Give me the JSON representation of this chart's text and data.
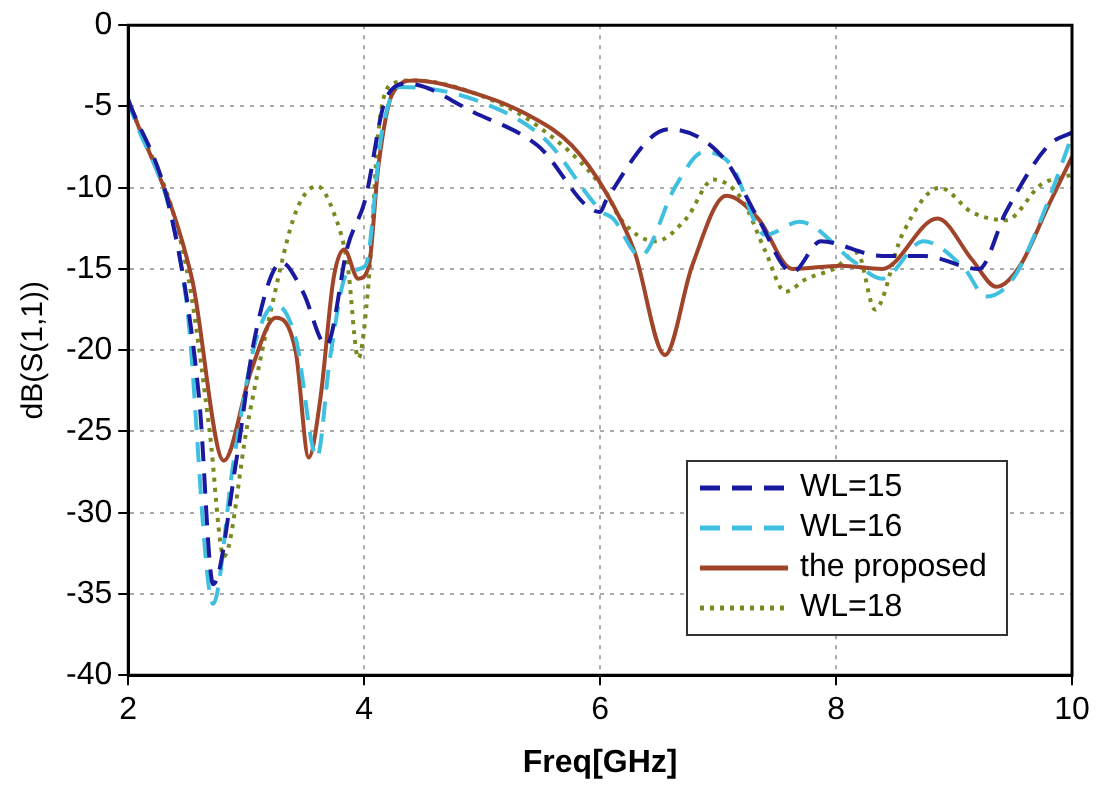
{
  "chart_data": {
    "type": "line",
    "xlabel": "Freq[GHz]",
    "ylabel": "dB(S(1,1))",
    "xlim": [
      2,
      10
    ],
    "xticks": [
      2,
      4,
      6,
      8,
      10
    ],
    "ylim": [
      -40,
      0
    ],
    "yticks": [
      -40,
      -35,
      -30,
      -25,
      -20,
      -15,
      -10,
      -5,
      0
    ],
    "grid": true,
    "legend": "bottom right",
    "marker": "none",
    "series": [
      {
        "name": "WL=15",
        "color": "#1a1aa0",
        "line_style": "dashed",
        "x": [
          2,
          2.37,
          2.6,
          2.72,
          2.92,
          3.07,
          3.3,
          3.48,
          3.68,
          3.86,
          4.01,
          4.18,
          4.36,
          4.94,
          5.47,
          6.0,
          6.05,
          6.58,
          7.05,
          7.34,
          7.63,
          7.87,
          8.39,
          8.74,
          9.21,
          9.44,
          9.8,
          10
        ],
        "values": [
          -4.6,
          -11.9,
          -22.9,
          -34.4,
          -26.6,
          -19.3,
          -14.6,
          -16.4,
          -19.7,
          -13.6,
          -10.7,
          -4.6,
          -3.6,
          -5.4,
          -7.4,
          -11.5,
          -10.8,
          -6.4,
          -8.2,
          -11.9,
          -15.2,
          -13.3,
          -14.2,
          -14.2,
          -15,
          -11.5,
          -7.4,
          -6.6
        ]
      },
      {
        "name": "WL=16",
        "color": "#40c0e0",
        "line_style": "dashed",
        "x": [
          2,
          2.49,
          2.72,
          2.89,
          3.07,
          3.25,
          3.42,
          3.6,
          3.71,
          3.86,
          4.01,
          4.15,
          4.3,
          4.94,
          5.53,
          6.02,
          6.11,
          6.34,
          6.64,
          6.88,
          7.11,
          7.4,
          7.69,
          8.16,
          8.39,
          8.74,
          9.09,
          9.27,
          9.5,
          9.74,
          10
        ],
        "values": [
          -4.6,
          -16.8,
          -35.6,
          -27,
          -19.7,
          -17.2,
          -19.3,
          -26.6,
          -20.5,
          -15.2,
          -14.8,
          -6.6,
          -3.8,
          -4.6,
          -7,
          -11.5,
          -11.9,
          -14.2,
          -9.9,
          -7.8,
          -8.6,
          -12.9,
          -12.1,
          -14.6,
          -15.6,
          -13.3,
          -15,
          -16.7,
          -15.6,
          -11.9,
          -6.8
        ]
      },
      {
        "name": "the proposed",
        "color": "#a0442a",
        "line_style": "solid",
        "x": [
          2,
          2.54,
          2.81,
          3.04,
          3.25,
          3.42,
          3.53,
          3.63,
          3.74,
          3.83,
          3.95,
          4.04,
          4.12,
          4.24,
          4.42,
          4.94,
          5.41,
          5.76,
          6.05,
          6.29,
          6.55,
          6.78,
          7.07,
          7.34,
          7.63,
          8.04,
          8.39,
          8.86,
          9.15,
          9.36,
          9.56,
          9.8,
          10
        ],
        "values": [
          -4.6,
          -15.6,
          -26.8,
          -21.3,
          -18,
          -20.1,
          -26.6,
          -22.9,
          -15.6,
          -13.8,
          -15.6,
          -14.8,
          -8.7,
          -4.2,
          -3.4,
          -4.2,
          -5.6,
          -7.4,
          -10.3,
          -13.9,
          -20.3,
          -14.8,
          -10.5,
          -11.9,
          -15,
          -14.8,
          -15,
          -11.9,
          -14.4,
          -16.1,
          -14.8,
          -11.1,
          -8.1
        ]
      },
      {
        "name": "WL=18",
        "color": "#7a8a20",
        "line_style": "dotted",
        "x": [
          2,
          2.49,
          2.69,
          2.81,
          3.01,
          3.22,
          3.42,
          3.6,
          3.74,
          3.86,
          3.95,
          4.04,
          4.12,
          4.24,
          4.42,
          4.94,
          5.47,
          6.05,
          6.17,
          6.47,
          6.73,
          6.96,
          7.2,
          7.4,
          7.57,
          7.75,
          7.98,
          8.18,
          8.33,
          8.56,
          8.88,
          9.15,
          9.44,
          9.74,
          10
        ],
        "values": [
          -4.6,
          -14.8,
          -25,
          -32.7,
          -24.6,
          -17.2,
          -11.5,
          -9.9,
          -11.5,
          -14.8,
          -20.5,
          -15.6,
          -6.6,
          -3.6,
          -3.4,
          -4.2,
          -6.2,
          -10.3,
          -11.9,
          -13.3,
          -11.9,
          -9.5,
          -10.7,
          -13.9,
          -16.4,
          -15.6,
          -15,
          -14,
          -17.5,
          -12.9,
          -10,
          -11.5,
          -12,
          -9.8,
          -9.2
        ]
      }
    ]
  }
}
